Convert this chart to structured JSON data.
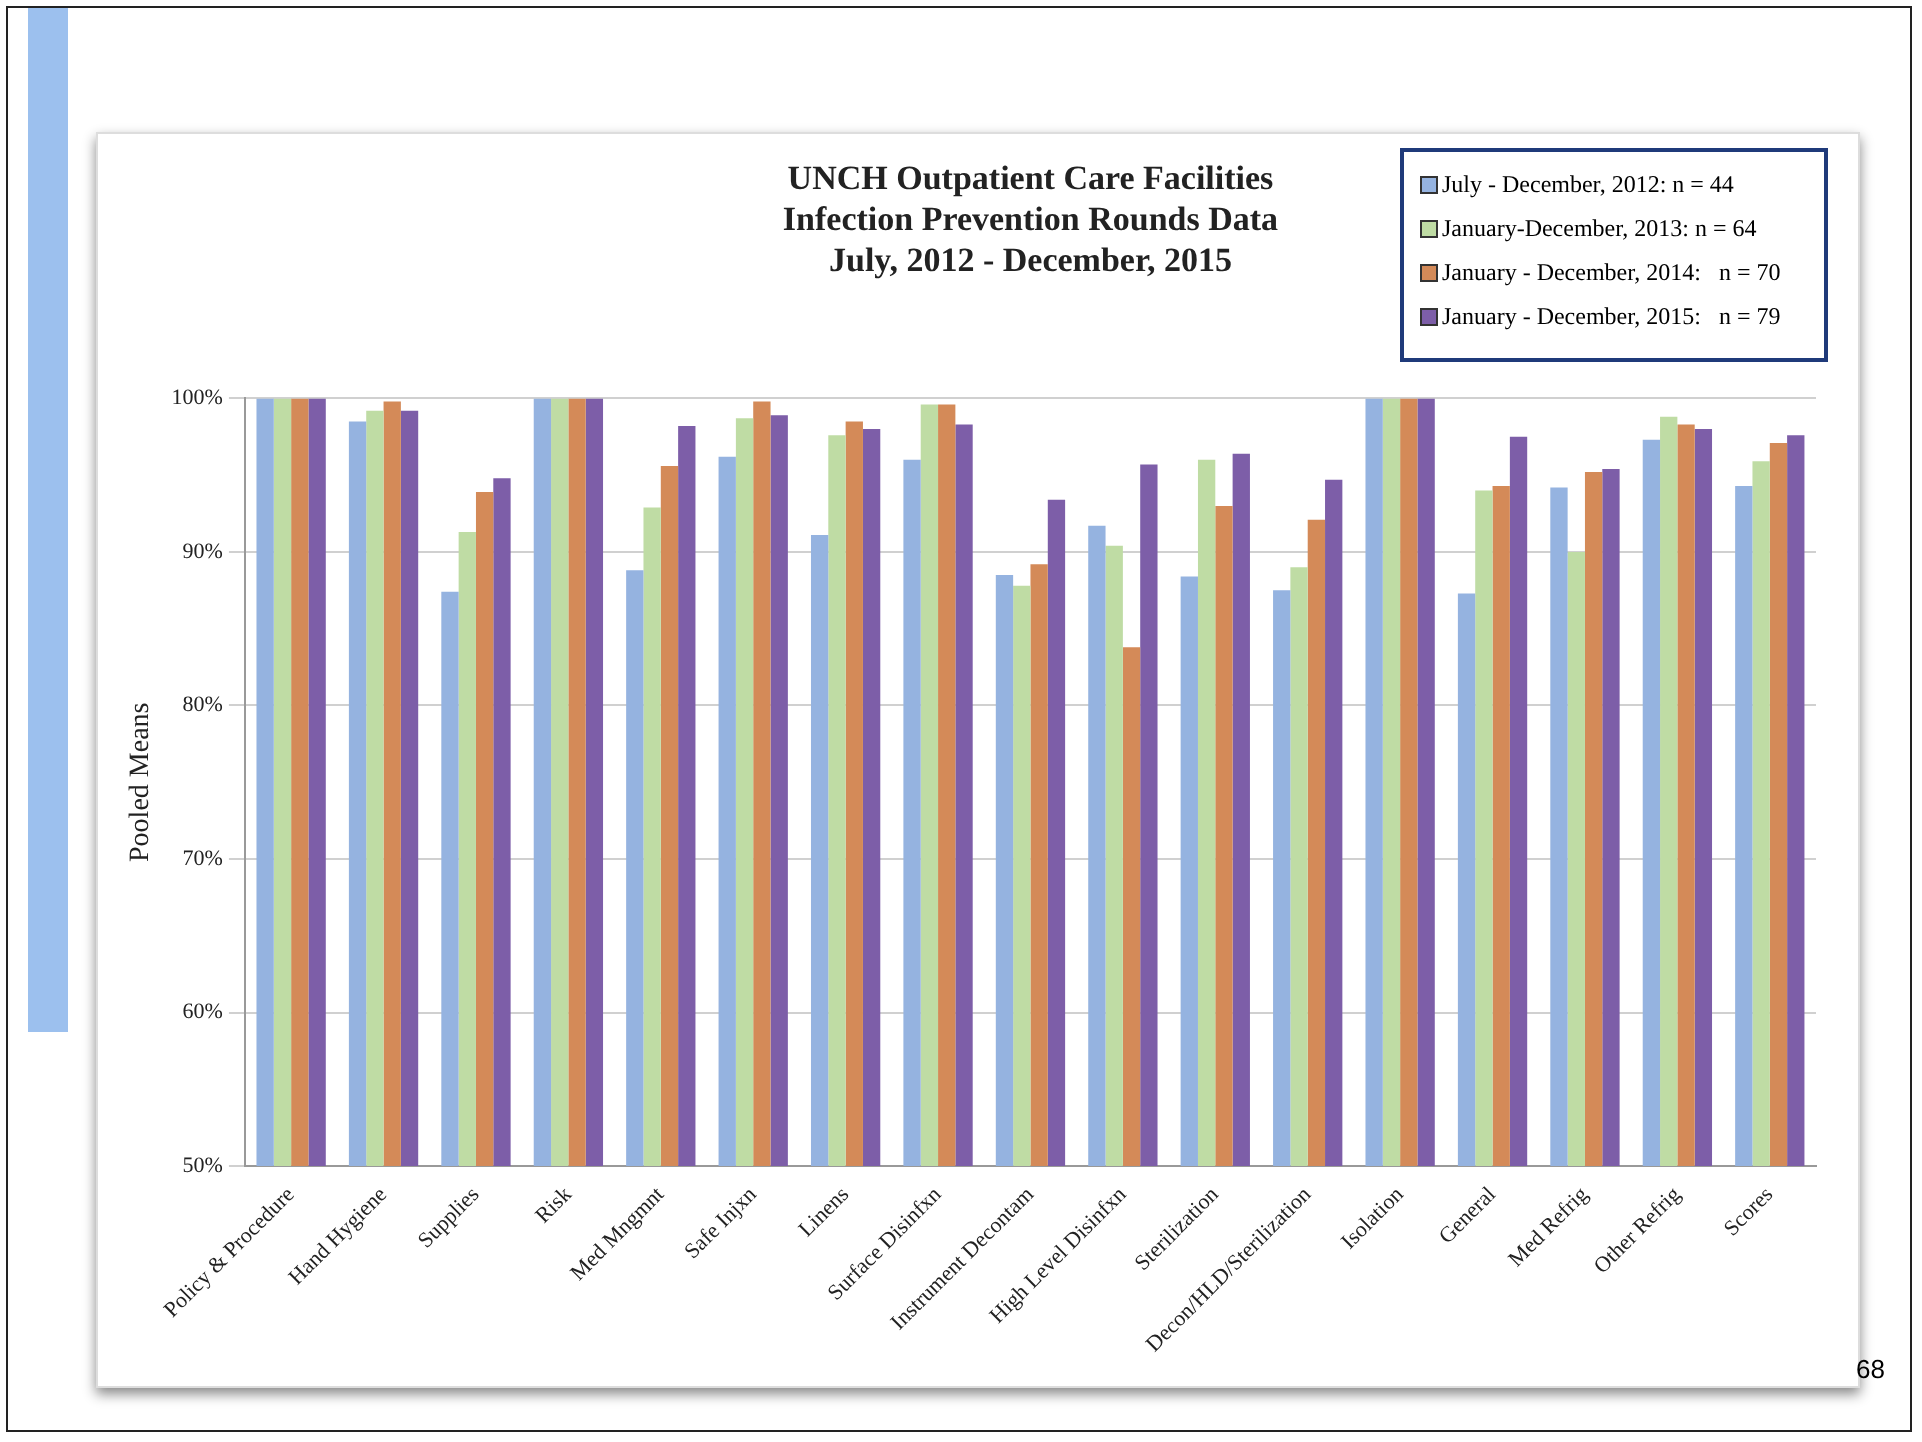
{
  "chart_data": {
    "type": "bar",
    "title": [
      "UNCH Outpatient Care Facilities",
      "Infection Prevention Rounds Data",
      "July, 2012 - December, 2015"
    ],
    "ylabel": "Pooled Means",
    "categories": [
      "Policy & Procedure",
      "Hand Hygiene",
      "Supplies",
      "Risk",
      "Med Mngmnt",
      "Safe Injxn",
      "Linens",
      "Surface Disinfxn",
      "Instrument Decontam",
      "High Level Disinfxn",
      "Sterilization",
      "Decon/HLD/Sterilization",
      "Isolation",
      "General",
      "Med Refrig",
      "Other Refrig",
      "Scores"
    ],
    "series": [
      {
        "name": "July - December, 2012: n = 44",
        "color": "#95b3e0",
        "values": [
          100,
          98.5,
          87.4,
          100,
          88.8,
          96.2,
          91.1,
          96.0,
          88.5,
          91.7,
          88.4,
          87.5,
          100,
          87.3,
          94.2,
          97.3,
          94.3
        ]
      },
      {
        "name": "January-December, 2013: n = 64",
        "color": "#bfdca4",
        "values": [
          100,
          99.2,
          91.3,
          100,
          92.9,
          98.7,
          97.6,
          99.6,
          87.8,
          90.4,
          96.0,
          89.0,
          100,
          94.0,
          90.0,
          98.8,
          95.9
        ]
      },
      {
        "name": "January - December, 2014:   n = 70",
        "color": "#d48a58",
        "values": [
          100,
          99.8,
          93.9,
          100,
          95.6,
          99.8,
          98.5,
          99.6,
          89.2,
          83.8,
          93.0,
          92.1,
          100,
          94.3,
          95.2,
          98.3,
          97.1
        ]
      },
      {
        "name": "January - December, 2015:   n = 79",
        "color": "#7d5ea8",
        "values": [
          100,
          99.2,
          94.8,
          100,
          98.2,
          98.9,
          98.0,
          98.3,
          93.4,
          95.7,
          96.4,
          94.7,
          100,
          97.5,
          95.4,
          98.0,
          97.6
        ]
      }
    ],
    "ylim": [
      50,
      100
    ],
    "yticks": [
      {
        "value": 50,
        "label": "50%"
      },
      {
        "value": 60,
        "label": "60%"
      },
      {
        "value": 70,
        "label": "70%"
      },
      {
        "value": 80,
        "label": "80%"
      },
      {
        "value": 90,
        "label": "90%"
      },
      {
        "value": 100,
        "label": "100%"
      }
    ],
    "grid": "y",
    "legend": "top right",
    "annotations": [
      "68"
    ]
  }
}
